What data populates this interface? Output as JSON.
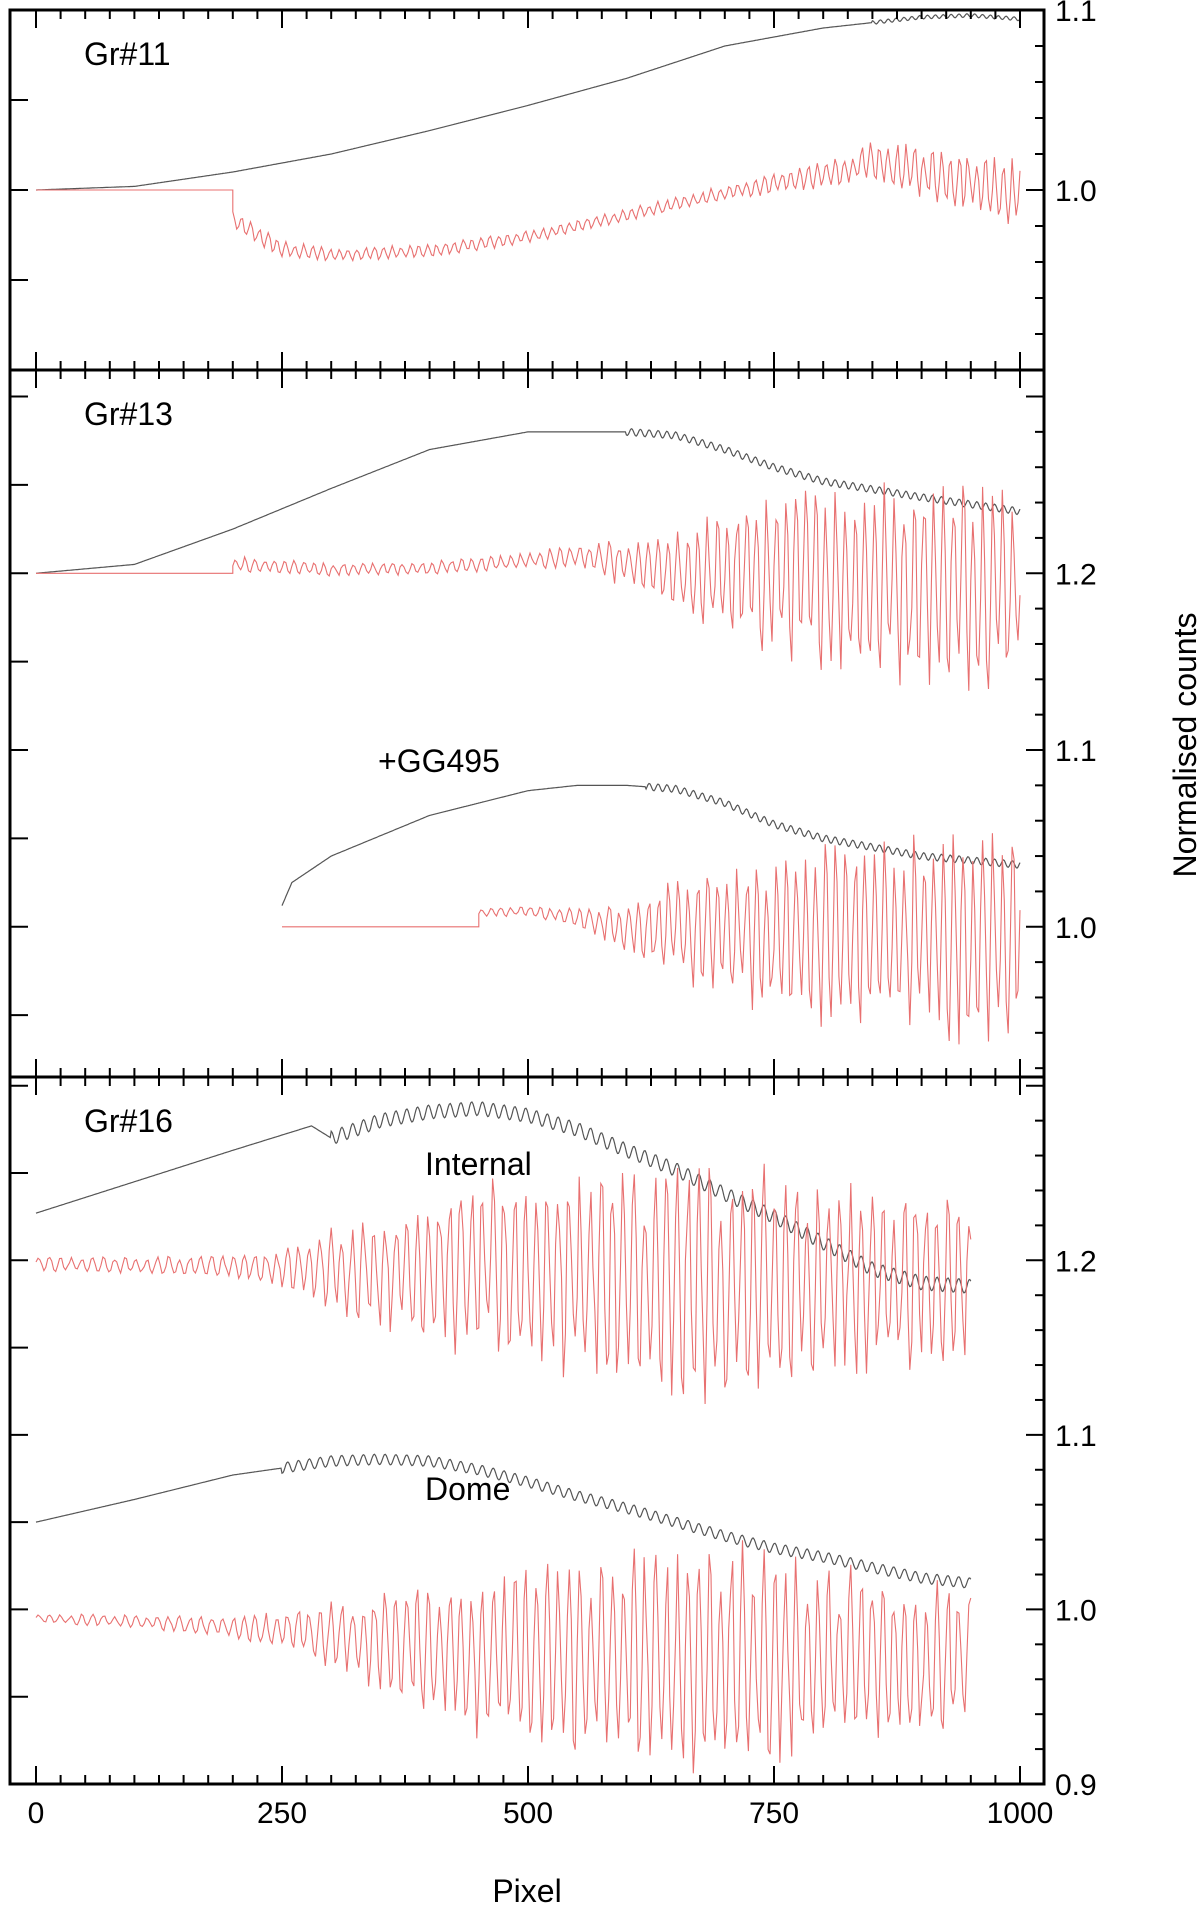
{
  "chart_data": {
    "type": "line",
    "xlabel": "Pixel",
    "ylabel": "Normalised counts",
    "xlim": [
      0,
      1000
    ],
    "x_ticks": [
      0,
      250,
      500,
      750,
      1000
    ],
    "x_tick_labels": [
      "0",
      "250",
      "500",
      "750",
      "1000"
    ],
    "grid": false,
    "colors": {
      "flat": "#555555",
      "ratio": "#e87070",
      "axes": "#000000"
    },
    "panels": [
      {
        "id": "gr11",
        "label": "Gr#11",
        "ylim": [
          0.9,
          1.1
        ],
        "y_ticks": [
          1.0,
          1.1
        ],
        "y_tick_labels": [
          "1.0",
          "1.1"
        ],
        "groups": [
          {
            "label": "",
            "offset": 0.0,
            "flat": {
              "x": [
                0,
                100,
                200,
                300,
                400,
                500,
                600,
                700,
                800,
                900,
                950,
                1000
              ],
              "y": [
                1.0,
                1.002,
                1.01,
                1.02,
                1.033,
                1.047,
                1.062,
                1.08,
                1.09,
                1.096,
                1.097,
                1.095
              ],
              "ripple_start": 850,
              "ripple_amp": 0.001,
              "ripple_period": 8
            },
            "ratio": {
              "flat_until": 200,
              "flat_value": 1.0,
              "x": [
                200,
                250,
                300,
                350,
                400,
                450,
                500,
                550,
                600,
                650,
                700,
                750,
                800,
                850,
                900,
                950,
                1000
              ],
              "y": [
                0.983,
                0.967,
                0.964,
                0.965,
                0.966,
                0.97,
                0.974,
                0.98,
                0.986,
                0.992,
                0.998,
                1.004,
                1.008,
                1.015,
                1.01,
                1.005,
                0.998
              ],
              "noise_amp": [
                0.006,
                0.005,
                0.004,
                0.004,
                0.004,
                0.004,
                0.004,
                0.004,
                0.004,
                0.004,
                0.005,
                0.006,
                0.008,
                0.012,
                0.016,
                0.018,
                0.02
              ],
              "period": 9
            }
          }
        ]
      },
      {
        "id": "gr13",
        "label": "Gr#13",
        "ylim": [
          0.915,
          1.315
        ],
        "y_ticks": [
          1.0,
          1.1,
          1.2
        ],
        "y_tick_labels": [
          "1.0",
          "1.1",
          "1.2"
        ],
        "groups": [
          {
            "label": "",
            "offset": 0.2,
            "flat": {
              "x": [
                0,
                100,
                200,
                300,
                400,
                500,
                550,
                600,
                650,
                700,
                750,
                800,
                900,
                1000
              ],
              "y": [
                1.0,
                1.005,
                1.025,
                1.048,
                1.07,
                1.08,
                1.08,
                1.08,
                1.078,
                1.07,
                1.06,
                1.052,
                1.043,
                1.035
              ],
              "ripple_start": 600,
              "ripple_amp": 0.002,
              "ripple_period": 9
            },
            "ratio": {
              "flat_until": 200,
              "flat_value": 1.0,
              "x": [
                200,
                300,
                400,
                500,
                550,
                600,
                650,
                700,
                750,
                800,
                850,
                900,
                950,
                1000
              ],
              "y": [
                1.005,
                1.002,
                1.003,
                1.007,
                1.01,
                1.005,
                1.0,
                1.0,
                1.0,
                0.998,
                0.996,
                0.996,
                0.995,
                0.995
              ],
              "noise_amp": [
                0.005,
                0.004,
                0.004,
                0.005,
                0.008,
                0.014,
                0.025,
                0.04,
                0.05,
                0.055,
                0.06,
                0.065,
                0.065,
                0.065
              ],
              "period": 10
            }
          },
          {
            "label": "+GG495",
            "offset": 0.0,
            "flat": {
              "x": [
                250,
                260,
                300,
                400,
                500,
                550,
                600,
                650,
                700,
                750,
                800,
                900,
                1000
              ],
              "y": [
                1.012,
                1.025,
                1.04,
                1.063,
                1.077,
                1.08,
                1.08,
                1.078,
                1.07,
                1.058,
                1.05,
                1.04,
                1.035
              ],
              "ripple_start": 620,
              "ripple_amp": 0.002,
              "ripple_period": 9
            },
            "ratio": {
              "flat_start": 250,
              "flat_until": 450,
              "flat_value": 1.0,
              "x": [
                450,
                500,
                550,
                600,
                650,
                700,
                750,
                800,
                850,
                900,
                950,
                1000
              ],
              "y": [
                1.008,
                1.009,
                1.005,
                1.0,
                0.998,
                0.996,
                0.995,
                0.996,
                0.996,
                0.995,
                0.995,
                0.995
              ],
              "noise_amp": [
                0.003,
                0.003,
                0.006,
                0.015,
                0.03,
                0.042,
                0.05,
                0.055,
                0.06,
                0.065,
                0.065,
                0.065
              ],
              "period": 10
            }
          }
        ]
      },
      {
        "id": "gr16",
        "label": "Gr#16",
        "ylim": [
          0.9,
          1.305
        ],
        "y_ticks": [
          0.9,
          1.0,
          1.1,
          1.2
        ],
        "y_tick_labels": [
          "0.9",
          "1.0",
          "1.1",
          "1.2"
        ],
        "groups": [
          {
            "label": "Internal",
            "offset": 0.2,
            "flat": {
              "x": [
                0,
                100,
                200,
                280,
                300,
                350,
                400,
                450,
                500,
                550,
                600,
                650,
                700,
                750,
                800,
                850,
                900,
                950
              ],
              "y": [
                1.027,
                1.045,
                1.063,
                1.077,
                1.07,
                1.08,
                1.085,
                1.087,
                1.083,
                1.075,
                1.063,
                1.052,
                1.038,
                1.025,
                1.01,
                0.995,
                0.987,
                0.985
              ],
              "ripple_start": 300,
              "ripple_amp": 0.004,
              "ripple_period": 11
            },
            "ratio": {
              "flat_until": 0,
              "flat_value": 1.0,
              "x": [
                0,
                100,
                200,
                250,
                300,
                350,
                400,
                450,
                500,
                550,
                600,
                650,
                700,
                750,
                800,
                850,
                900,
                950
              ],
              "y": [
                0.998,
                0.997,
                0.997,
                0.995,
                0.995,
                0.995,
                0.995,
                0.995,
                0.995,
                0.993,
                0.99,
                0.985,
                0.985,
                0.985,
                0.99,
                0.99,
                0.99,
                0.99
              ],
              "noise_amp": [
                0.005,
                0.005,
                0.007,
                0.012,
                0.025,
                0.035,
                0.045,
                0.055,
                0.06,
                0.065,
                0.07,
                0.075,
                0.075,
                0.07,
                0.065,
                0.06,
                0.055,
                0.05
              ],
              "period": 11
            }
          },
          {
            "label": "Dome",
            "offset": 0.0,
            "flat": {
              "x": [
                0,
                100,
                200,
                300,
                350,
                400,
                450,
                500,
                550,
                600,
                650,
                700,
                750,
                800,
                850,
                900,
                950
              ],
              "y": [
                1.05,
                1.063,
                1.077,
                1.085,
                1.086,
                1.085,
                1.08,
                1.073,
                1.065,
                1.058,
                1.05,
                1.042,
                1.035,
                1.03,
                1.024,
                1.018,
                1.015
              ],
              "ripple_start": 250,
              "ripple_amp": 0.003,
              "ripple_period": 11
            },
            "ratio": {
              "flat_until": 0,
              "flat_value": 1.0,
              "x": [
                0,
                100,
                200,
                250,
                300,
                350,
                400,
                450,
                500,
                550,
                600,
                650,
                700,
                750,
                800,
                850,
                900,
                950
              ],
              "y": [
                0.995,
                0.993,
                0.99,
                0.988,
                0.985,
                0.982,
                0.978,
                0.975,
                0.972,
                0.972,
                0.972,
                0.972,
                0.972,
                0.972,
                0.972,
                0.972,
                0.972,
                0.975
              ],
              "noise_amp": [
                0.003,
                0.004,
                0.006,
                0.012,
                0.02,
                0.03,
                0.04,
                0.05,
                0.055,
                0.06,
                0.065,
                0.07,
                0.07,
                0.065,
                0.06,
                0.055,
                0.05,
                0.045
              ],
              "period": 11
            }
          }
        ]
      }
    ]
  }
}
